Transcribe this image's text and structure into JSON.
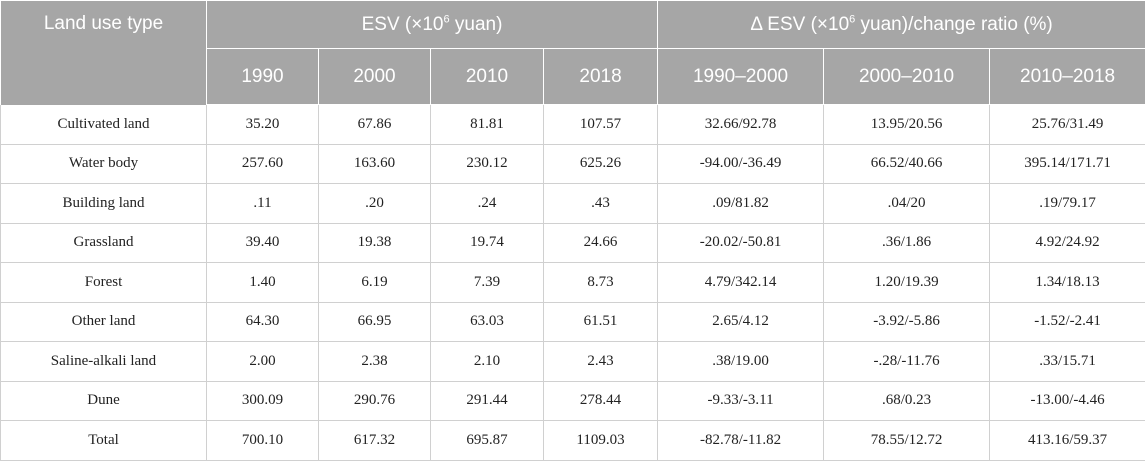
{
  "table": {
    "header": {
      "land_use_type": "Land use type",
      "esv_group_pre": "ESV (×10",
      "esv_group_sup": "6",
      "esv_group_post": " yuan)",
      "delta_group_pre": "Δ ESV (×10",
      "delta_group_sup": "6",
      "delta_group_post": " yuan)/change ratio (%)",
      "years": [
        "1990",
        "2000",
        "2010",
        "2018"
      ],
      "periods": [
        "1990–2000",
        "2000–2010",
        "2010–2018"
      ]
    },
    "rows": [
      [
        "Cultivated land",
        "35.20",
        "67.86",
        "81.81",
        "107.57",
        "32.66/92.78",
        "13.95/20.56",
        "25.76/31.49"
      ],
      [
        "Water body",
        "257.60",
        "163.60",
        "230.12",
        "625.26",
        "-94.00/-36.49",
        "66.52/40.66",
        "395.14/171.71"
      ],
      [
        "Building land",
        ".11",
        ".20",
        ".24",
        ".43",
        ".09/81.82",
        ".04/20",
        ".19/79.17"
      ],
      [
        "Grassland",
        "39.40",
        "19.38",
        "19.74",
        "24.66",
        "-20.02/-50.81",
        ".36/1.86",
        "4.92/24.92"
      ],
      [
        "Forest",
        "1.40",
        "6.19",
        "7.39",
        "8.73",
        "4.79/342.14",
        "1.20/19.39",
        "1.34/18.13"
      ],
      [
        "Other land",
        "64.30",
        "66.95",
        "63.03",
        "61.51",
        "2.65/4.12",
        "-3.92/-5.86",
        "-1.52/-2.41"
      ],
      [
        "Saline-alkali land",
        "2.00",
        "2.38",
        "2.10",
        "2.43",
        ".38/19.00",
        "-.28/-11.76",
        ".33/15.71"
      ],
      [
        "Dune",
        "300.09",
        "290.76",
        "291.44",
        "278.44",
        "-9.33/-3.11",
        ".68/0.23",
        "-13.00/-4.46"
      ],
      [
        "Total",
        "700.10",
        "617.32",
        "695.87",
        "1109.03",
        "-82.78/-11.82",
        "78.55/12.72",
        "413.16/59.37"
      ]
    ]
  }
}
